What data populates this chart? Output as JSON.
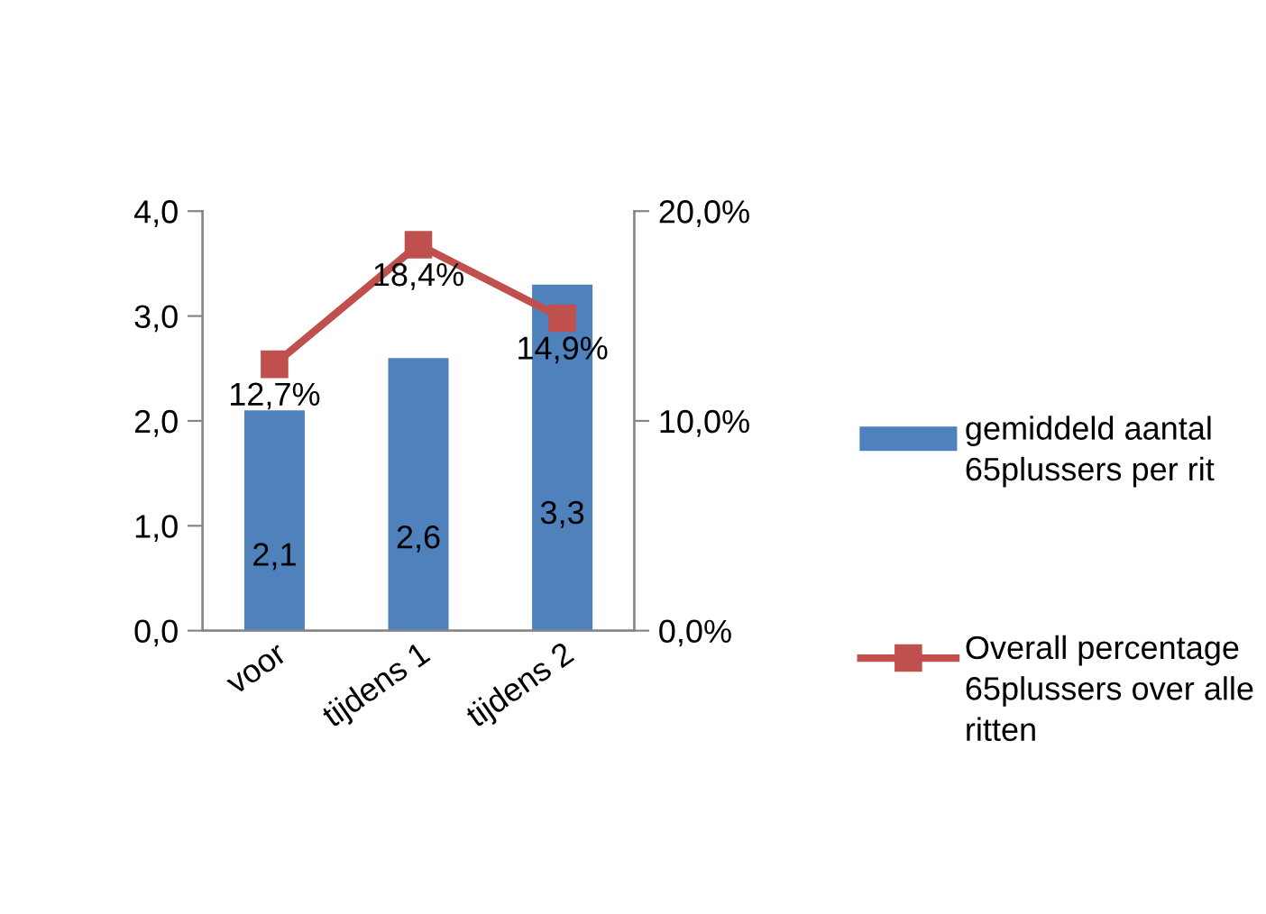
{
  "chart_data": {
    "type": "bar",
    "categories": [
      "voor",
      "tijdens 1",
      "tijdens 2"
    ],
    "series": [
      {
        "name": "gemiddeld aantal 65plussers per rit",
        "color": "#4f81bd",
        "values": [
          2.1,
          2.6,
          3.3
        ],
        "value_labels": [
          "2,1",
          "2,6",
          "3,3"
        ]
      },
      {
        "name": "Overall percentage 65plussers over alle ritten",
        "type": "line",
        "axis": "y2",
        "color": "#c0504d",
        "marker": "square",
        "values": [
          12.7,
          18.4,
          14.9
        ],
        "value_labels": [
          "12,7%",
          "18,4%",
          "14,9%"
        ]
      }
    ],
    "ylim": [
      0,
      4
    ],
    "yticks": [
      {
        "value": 0,
        "label": "0,0"
      },
      {
        "value": 1,
        "label": "1,0"
      },
      {
        "value": 2,
        "label": "2,0"
      },
      {
        "value": 3,
        "label": "3,0"
      },
      {
        "value": 4,
        "label": "4,0"
      }
    ],
    "y2lim": [
      0,
      20
    ],
    "y2ticks": [
      {
        "value": 0,
        "label": "0,0%"
      },
      {
        "value": 10,
        "label": "10,0%"
      },
      {
        "value": 20,
        "label": "20,0%"
      }
    ],
    "grid": false,
    "legend": "right"
  }
}
